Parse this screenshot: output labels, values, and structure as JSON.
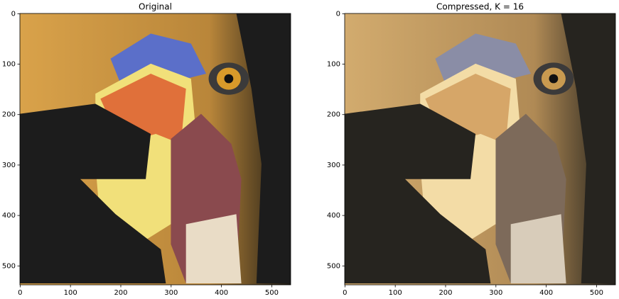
{
  "chart_data": [
    {
      "type": "image",
      "title": "Original",
      "xlim": [
        -0.5,
        537.5
      ],
      "ylim": [
        537.5,
        -0.5
      ],
      "xticks": [
        0,
        100,
        200,
        300,
        400,
        500
      ],
      "yticks": [
        0,
        100,
        200,
        300,
        400,
        500
      ]
    },
    {
      "type": "image",
      "title": "Compressed, K = 16",
      "xlim": [
        -0.5,
        537.5
      ],
      "ylim": [
        537.5,
        -0.5
      ],
      "xticks": [
        0,
        100,
        200,
        300,
        400,
        500
      ],
      "yticks": [
        0,
        100,
        200,
        300,
        400,
        500
      ]
    }
  ]
}
